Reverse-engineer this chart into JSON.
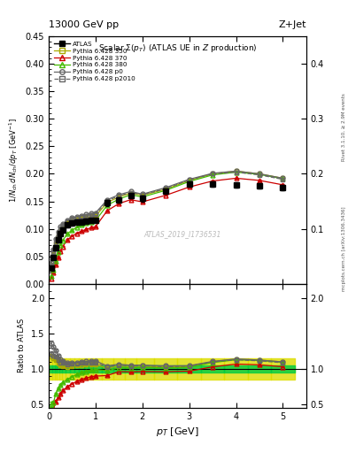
{
  "title_top": "13000 GeV pp",
  "title_right": "Z+Jet",
  "plot_title": "Scalar Σ(p_{T}) (ATLAS UE in Z production)",
  "ylabel_main": "1/N_{ch} dN_{ch}/dp_{T} [GeV^{-1}]",
  "ylabel_ratio": "Ratio to ATLAS",
  "xlabel": "p_{T} [GeV]",
  "watermark": "ATLAS_2019_I1736531",
  "right_label1": "Rivet 3.1.10, ≥ 2.9M events",
  "right_label2": "mcplots.cern.ch [arXiv:1306.3436]",
  "atlas_x": [
    0.05,
    0.1,
    0.15,
    0.2,
    0.25,
    0.3,
    0.4,
    0.5,
    0.6,
    0.7,
    0.8,
    0.9,
    1.0,
    1.25,
    1.5,
    1.75,
    2.0,
    2.5,
    3.0,
    3.5,
    4.0,
    4.5,
    5.0
  ],
  "atlas_y": [
    0.028,
    0.048,
    0.065,
    0.08,
    0.092,
    0.098,
    0.107,
    0.11,
    0.112,
    0.113,
    0.114,
    0.115,
    0.116,
    0.147,
    0.152,
    0.16,
    0.155,
    0.168,
    0.182,
    0.182,
    0.18,
    0.178,
    0.175
  ],
  "atlas_ye": [
    0.003,
    0.003,
    0.004,
    0.004,
    0.004,
    0.004,
    0.004,
    0.004,
    0.004,
    0.004,
    0.004,
    0.004,
    0.004,
    0.005,
    0.005,
    0.005,
    0.005,
    0.005,
    0.005,
    0.005,
    0.005,
    0.005,
    0.005
  ],
  "p350_x": [
    0.05,
    0.1,
    0.15,
    0.2,
    0.25,
    0.3,
    0.4,
    0.5,
    0.6,
    0.7,
    0.8,
    0.9,
    1.0,
    1.25,
    1.5,
    1.75,
    2.0,
    2.5,
    3.0,
    3.5,
    4.0,
    4.5,
    5.0
  ],
  "p350_y": [
    0.033,
    0.055,
    0.073,
    0.086,
    0.096,
    0.101,
    0.11,
    0.114,
    0.117,
    0.119,
    0.121,
    0.122,
    0.123,
    0.148,
    0.158,
    0.165,
    0.161,
    0.172,
    0.188,
    0.2,
    0.205,
    0.2,
    0.192
  ],
  "p350_ye": [
    0.001,
    0.001,
    0.001,
    0.001,
    0.001,
    0.001,
    0.001,
    0.001,
    0.001,
    0.001,
    0.001,
    0.001,
    0.001,
    0.001,
    0.001,
    0.001,
    0.001,
    0.001,
    0.001,
    0.001,
    0.001,
    0.001,
    0.001
  ],
  "p350_color": "#aaaa00",
  "p370_x": [
    0.05,
    0.1,
    0.15,
    0.2,
    0.25,
    0.3,
    0.4,
    0.5,
    0.6,
    0.7,
    0.8,
    0.9,
    1.0,
    1.25,
    1.5,
    1.75,
    2.0,
    2.5,
    3.0,
    3.5,
    4.0,
    4.5,
    5.0
  ],
  "p370_y": [
    0.01,
    0.02,
    0.035,
    0.048,
    0.06,
    0.068,
    0.08,
    0.087,
    0.092,
    0.096,
    0.099,
    0.102,
    0.104,
    0.133,
    0.146,
    0.153,
    0.149,
    0.161,
    0.176,
    0.187,
    0.192,
    0.188,
    0.18
  ],
  "p370_ye": [
    0.001,
    0.001,
    0.001,
    0.001,
    0.001,
    0.001,
    0.001,
    0.001,
    0.001,
    0.001,
    0.001,
    0.001,
    0.001,
    0.001,
    0.001,
    0.001,
    0.001,
    0.001,
    0.001,
    0.001,
    0.001,
    0.001,
    0.001
  ],
  "p370_color": "#cc0000",
  "p380_x": [
    0.05,
    0.1,
    0.15,
    0.2,
    0.25,
    0.3,
    0.4,
    0.5,
    0.6,
    0.7,
    0.8,
    0.9,
    1.0,
    1.25,
    1.5,
    1.75,
    2.0,
    2.5,
    3.0,
    3.5,
    4.0,
    4.5,
    5.0
  ],
  "p380_y": [
    0.014,
    0.025,
    0.042,
    0.058,
    0.071,
    0.079,
    0.091,
    0.098,
    0.103,
    0.107,
    0.11,
    0.113,
    0.115,
    0.143,
    0.154,
    0.162,
    0.158,
    0.17,
    0.186,
    0.198,
    0.203,
    0.199,
    0.191
  ],
  "p380_ye": [
    0.001,
    0.001,
    0.001,
    0.001,
    0.001,
    0.001,
    0.001,
    0.001,
    0.001,
    0.001,
    0.001,
    0.001,
    0.001,
    0.001,
    0.001,
    0.001,
    0.001,
    0.001,
    0.001,
    0.001,
    0.001,
    0.001,
    0.001
  ],
  "p380_color": "#44bb00",
  "p0_x": [
    0.05,
    0.1,
    0.15,
    0.2,
    0.25,
    0.3,
    0.4,
    0.5,
    0.6,
    0.7,
    0.8,
    0.9,
    1.0,
    1.25,
    1.5,
    1.75,
    2.0,
    2.5,
    3.0,
    3.5,
    4.0,
    4.5,
    5.0
  ],
  "p0_y": [
    0.038,
    0.063,
    0.082,
    0.095,
    0.104,
    0.109,
    0.116,
    0.12,
    0.122,
    0.124,
    0.126,
    0.128,
    0.129,
    0.153,
    0.162,
    0.168,
    0.163,
    0.175,
    0.19,
    0.201,
    0.205,
    0.2,
    0.192
  ],
  "p0_ye": [
    0.001,
    0.001,
    0.001,
    0.001,
    0.001,
    0.001,
    0.001,
    0.001,
    0.001,
    0.001,
    0.001,
    0.001,
    0.001,
    0.001,
    0.001,
    0.001,
    0.001,
    0.001,
    0.001,
    0.001,
    0.001,
    0.001,
    0.001
  ],
  "p0_color": "#666666",
  "p2010_x": [
    0.05,
    0.1,
    0.15,
    0.2,
    0.25,
    0.3,
    0.4,
    0.5,
    0.6,
    0.7,
    0.8,
    0.9,
    1.0,
    1.25,
    1.5,
    1.75,
    2.0,
    2.5,
    3.0,
    3.5,
    4.0,
    4.5,
    5.0
  ],
  "p2010_y": [
    0.034,
    0.057,
    0.076,
    0.09,
    0.1,
    0.106,
    0.114,
    0.118,
    0.12,
    0.122,
    0.124,
    0.125,
    0.126,
    0.151,
    0.16,
    0.166,
    0.162,
    0.173,
    0.189,
    0.2,
    0.203,
    0.198,
    0.19
  ],
  "p2010_ye": [
    0.001,
    0.001,
    0.001,
    0.001,
    0.001,
    0.001,
    0.001,
    0.001,
    0.001,
    0.001,
    0.001,
    0.001,
    0.001,
    0.001,
    0.001,
    0.001,
    0.001,
    0.001,
    0.001,
    0.001,
    0.001,
    0.001,
    0.001
  ],
  "p2010_color": "#666666",
  "ylim_main": [
    0.0,
    0.45
  ],
  "xlim": [
    0.0,
    5.5
  ],
  "ylim_ratio": [
    0.45,
    2.2
  ],
  "bg_color": "#ffffff",
  "green_color": "#00cc44",
  "yellow_color": "#dddd00"
}
